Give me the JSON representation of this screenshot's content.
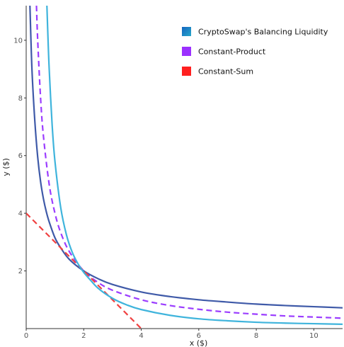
{
  "chart_data": {
    "type": "line",
    "title": "",
    "xlabel": "x ($)",
    "ylabel": "y ($)",
    "xlim": [
      0,
      11
    ],
    "ylim": [
      0,
      11.2
    ],
    "x_ticks": [
      0,
      2,
      4,
      6,
      8,
      10
    ],
    "y_ticks": [
      2,
      4,
      6,
      8,
      10
    ],
    "grid": false,
    "legend_position": "top-right",
    "legend": [
      {
        "label": "CryptoSwap's Balancing Liquidity",
        "color": "#3a5ba8",
        "swatch_gradient": [
          "#1565c0",
          "#26a7c9"
        ]
      },
      {
        "label": "Constant-Product",
        "color": "#9b30ff"
      },
      {
        "label": "Constant-Sum",
        "color": "#ff2020"
      }
    ],
    "series": [
      {
        "name": "CryptoSwap's Balancing Liquidity",
        "color": "#3f5aa8",
        "style": "solid",
        "x": [
          0.13,
          0.2,
          0.3,
          0.4,
          0.5,
          0.6,
          0.7,
          0.8,
          1.0,
          1.2,
          1.5,
          2.0,
          2.5,
          3.0,
          4.0,
          5.0,
          6.0,
          7.0,
          8.0,
          9.0,
          10.0,
          11.0
        ],
        "y": [
          11.2,
          9.0,
          7.2,
          5.95,
          5.1,
          4.5,
          4.05,
          3.7,
          3.15,
          2.8,
          2.4,
          2.0,
          1.73,
          1.53,
          1.27,
          1.11,
          1.0,
          0.92,
          0.85,
          0.8,
          0.76,
          0.72
        ]
      },
      {
        "name": "Constant-Product",
        "color": "#9b3dff",
        "style": "dashed",
        "x": [
          0.357,
          0.4,
          0.5,
          0.6,
          0.8,
          1.0,
          1.2,
          1.5,
          2.0,
          2.5,
          3.0,
          4.0,
          5.0,
          6.0,
          7.0,
          8.0,
          9.0,
          10.0,
          11.0
        ],
        "y": [
          11.2,
          10.0,
          8.0,
          6.67,
          5.0,
          4.0,
          3.33,
          2.67,
          2.0,
          1.6,
          1.33,
          1.0,
          0.8,
          0.67,
          0.57,
          0.5,
          0.44,
          0.4,
          0.36
        ]
      },
      {
        "name": "Constant-Sum",
        "color": "#f04040",
        "style": "dashed",
        "x": [
          0,
          4
        ],
        "y": [
          4,
          0
        ]
      },
      {
        "name": "CryptoSwap's Balancing Liquidity (outer)",
        "color": "#3fb4dc",
        "style": "solid",
        "x": [
          0.72,
          0.75,
          0.8,
          0.9,
          1.0,
          1.2,
          1.4,
          1.6,
          1.8,
          2.0,
          2.2,
          2.5,
          3.0,
          3.5,
          4.0,
          5.0,
          6.0,
          7.0,
          8.0,
          9.0,
          10.0,
          11.0
        ],
        "y": [
          11.2,
          10.3,
          9.0,
          7.1,
          5.8,
          4.2,
          3.25,
          2.65,
          2.25,
          1.95,
          1.72,
          1.4,
          1.05,
          0.82,
          0.66,
          0.46,
          0.34,
          0.27,
          0.22,
          0.19,
          0.17,
          0.15
        ]
      }
    ]
  }
}
